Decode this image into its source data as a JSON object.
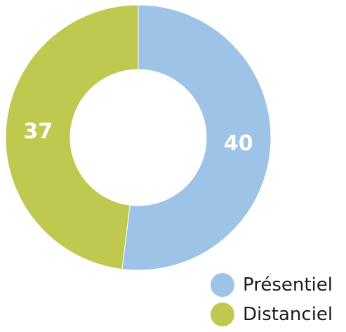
{
  "chart_data": {
    "type": "pie",
    "variant": "donut",
    "title": "",
    "categories": [
      "Présentiel",
      "Distanciel"
    ],
    "values": [
      40,
      37
    ],
    "colors": [
      "#9DC3E6",
      "#C0C94F"
    ],
    "data_labels": [
      "40",
      "37"
    ],
    "legend_placement": "bottom-right"
  },
  "legend": {
    "items": [
      {
        "label": "Présentiel",
        "color": "#9DC3E6"
      },
      {
        "label": "Distanciel",
        "color": "#C0C94F"
      }
    ]
  }
}
